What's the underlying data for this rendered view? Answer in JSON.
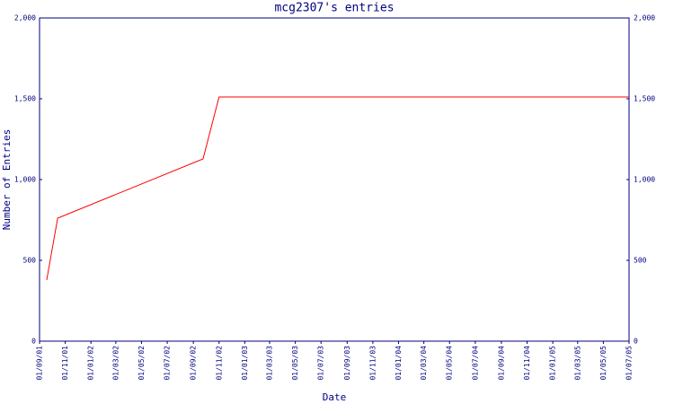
{
  "chart_data": {
    "type": "line",
    "title": "mcg2307's entries",
    "xlabel": "Date",
    "ylabel": "Number of Entries",
    "x": [
      "18/09/01",
      "14/10/01",
      "24/09/02",
      "01/11/02",
      "01/07/05"
    ],
    "series": [
      {
        "color": "#ff0000",
        "values": [
          378,
          761,
          1128,
          1511,
          1511
        ]
      }
    ],
    "xlim": [
      "01/09/01",
      "01/07/05"
    ],
    "xticks": [
      "01/09/01",
      "01/11/01",
      "01/01/02",
      "01/03/02",
      "01/05/02",
      "01/07/02",
      "01/09/02",
      "01/11/02",
      "01/01/03",
      "01/03/03",
      "01/05/03",
      "01/07/03",
      "01/09/03",
      "01/11/03",
      "01/01/04",
      "01/03/04",
      "01/05/04",
      "01/07/04",
      "01/09/04",
      "01/11/04",
      "01/01/05",
      "01/03/05",
      "01/05/05",
      "01/07/05"
    ],
    "ylim": [
      0,
      2000
    ],
    "yticks": [
      0,
      500,
      {
        "value": 1000,
        "label": "1,000"
      },
      {
        "value": 1500,
        "label": "1,500"
      },
      {
        "value": 2000,
        "label": "2,000"
      }
    ],
    "y2lim": [
      0,
      2000
    ],
    "y2ticks": [
      0,
      500,
      {
        "value": 1000,
        "label": "1,000"
      },
      {
        "value": 1500,
        "label": "1,500"
      },
      {
        "value": 2000,
        "label": "2,000"
      }
    ]
  }
}
